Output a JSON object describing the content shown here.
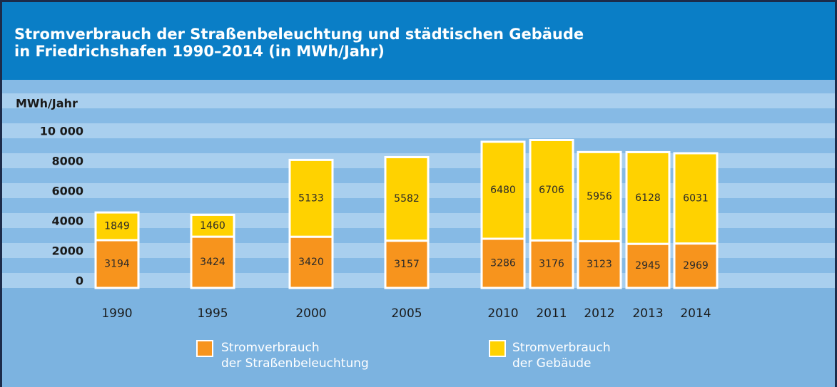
{
  "chart_data": {
    "type": "stacked-bar",
    "title": "Stromverbrauch der Straßenbeleuchtung und städtischen Gebäude\nin Friedrichshafen 1990–2014 (in MWh/Jahr)",
    "y_label": "MWh/Jahr",
    "categories": [
      "1990",
      "1995",
      "2000",
      "2005",
      "2010",
      "2011",
      "2012",
      "2013",
      "2014"
    ],
    "series": [
      {
        "name": "Stromverbrauch\nder Straßenbeleuchtung",
        "color": "#f7941d",
        "values": [
          3194,
          3424,
          3420,
          3157,
          3286,
          3176,
          3123,
          2945,
          2969
        ]
      },
      {
        "name": "Stromverbrauch\nder Gebäude",
        "color": "#ffd200",
        "values": [
          1849,
          1460,
          5133,
          5582,
          6480,
          6706,
          5956,
          6128,
          6031
        ]
      }
    ],
    "ylim": [
      0,
      10000
    ],
    "yticks": [
      0,
      2000,
      4000,
      6000,
      8000,
      {
        "value": 10000,
        "label": "10 000"
      }
    ]
  }
}
